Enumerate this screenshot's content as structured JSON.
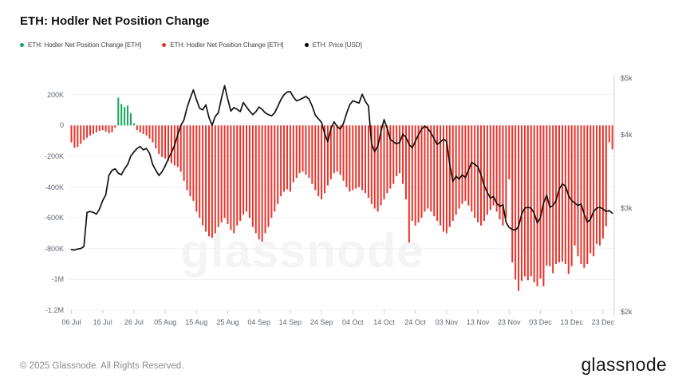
{
  "header": {
    "title": "ETH: Hodler Net Position Change"
  },
  "legend": [
    {
      "label": "ETH: Hodler Net Position Change [ETH]",
      "color": "#17a65b"
    },
    {
      "label": "ETH: Hodler Net Position Change [ETH]",
      "color": "#e9332a"
    },
    {
      "label": "ETH: Price [USD]",
      "color": "#000000"
    }
  ],
  "watermark": "glassnode",
  "footer": {
    "copyright": "© 2025 Glassnode. All Rights Reserved.",
    "logo": "glassnode"
  },
  "chart_data": {
    "type": "bar+line",
    "title": "ETH: Hodler Net Position Change",
    "x_start_date": "06 Jul",
    "x_frequency": "daily",
    "x_tick_labels": [
      "06 Jul",
      "16 Jul",
      "26 Jul",
      "05 Aug",
      "15 Aug",
      "25 Aug",
      "04 Sep",
      "14 Sep",
      "24 Sep",
      "04 Oct",
      "14 Oct",
      "24 Oct",
      "03 Nov",
      "13 Nov",
      "23 Nov",
      "03 Dec",
      "13 Dec",
      "23 Dec"
    ],
    "x_tick_day_indices": [
      0,
      10,
      20,
      30,
      40,
      50,
      60,
      70,
      80,
      90,
      100,
      110,
      120,
      130,
      140,
      150,
      160,
      170
    ],
    "left_axis": {
      "tick_labels": [
        "200K",
        "0",
        "-200K",
        "-400K",
        "-600K",
        "-800K",
        "-1M",
        "-1.2M"
      ],
      "tick_values_k": [
        200,
        0,
        -200,
        -400,
        -600,
        -800,
        -1000,
        -1200
      ],
      "range_k": [
        -1200,
        250
      ],
      "scale": "linear",
      "grid": true
    },
    "right_axis": {
      "tick_labels": [
        "$5k",
        "$4k",
        "$3k",
        "$2k"
      ],
      "tick_values_usd": [
        5000,
        4000,
        3000,
        2000
      ],
      "range_usd": [
        2000,
        5000
      ],
      "scale": "log",
      "grid": false
    },
    "series": [
      {
        "name": "ETH: Hodler Net Position Change [ETH]",
        "type": "bar",
        "unit": "thousand ETH",
        "positive_color": "#17a65b",
        "negative_color": "#e9332a",
        "values_k": [
          -110,
          -145,
          -140,
          -120,
          -95,
          -80,
          -65,
          -55,
          -45,
          -35,
          -30,
          -40,
          -50,
          -45,
          -15,
          180,
          140,
          120,
          130,
          80,
          15,
          -30,
          -45,
          -55,
          -65,
          -85,
          -110,
          -150,
          -185,
          -205,
          -215,
          -230,
          -245,
          -260,
          -270,
          -300,
          -360,
          -420,
          -460,
          -490,
          -560,
          -600,
          -650,
          -690,
          -720,
          -730,
          -700,
          -660,
          -630,
          -600,
          -640,
          -680,
          -700,
          -650,
          -620,
          -580,
          -560,
          -600,
          -660,
          -700,
          -740,
          -755,
          -700,
          -660,
          -600,
          -560,
          -510,
          -460,
          -430,
          -415,
          -430,
          -370,
          -340,
          -310,
          -300,
          -320,
          -340,
          -380,
          -420,
          -460,
          -480,
          -440,
          -390,
          -350,
          -310,
          -300,
          -320,
          -360,
          -400,
          -430,
          -420,
          -410,
          -400,
          -420,
          -440,
          -470,
          -510,
          -540,
          -560,
          -520,
          -480,
          -440,
          -410,
          -380,
          -330,
          -310,
          -380,
          -480,
          -760,
          -620,
          -650,
          -630,
          -600,
          -560,
          -540,
          -560,
          -590,
          -620,
          -650,
          -690,
          -700,
          -660,
          -620,
          -580,
          -540,
          -510,
          -490,
          -520,
          -560,
          -600,
          -630,
          -650,
          -620,
          -580,
          -550,
          -520,
          -560,
          -610,
          -650,
          -600,
          -350,
          -890,
          -1000,
          -1075,
          -1010,
          -980,
          -1005,
          -980,
          -1020,
          -1045,
          -995,
          -1045,
          -910,
          -915,
          -960,
          -900,
          -890,
          -885,
          -900,
          -965,
          -915,
          -780,
          -850,
          -900,
          -925,
          -900,
          -830,
          -850,
          -770,
          -780,
          -735,
          -655,
          -110,
          -155
        ]
      },
      {
        "name": "ETH: Price [USD]",
        "type": "line",
        "unit": "USD",
        "color": "#111111",
        "values_usd": [
          2550,
          2545,
          2555,
          2560,
          2580,
          2950,
          2960,
          2950,
          2930,
          2990,
          3090,
          3160,
          3410,
          3480,
          3500,
          3440,
          3420,
          3500,
          3560,
          3680,
          3740,
          3790,
          3820,
          3770,
          3790,
          3720,
          3560,
          3480,
          3410,
          3460,
          3540,
          3640,
          3730,
          3840,
          4000,
          4150,
          4240,
          4450,
          4620,
          4770,
          4590,
          4440,
          4410,
          4500,
          4280,
          4150,
          4300,
          4360,
          4620,
          4850,
          4600,
          4390,
          4450,
          4420,
          4380,
          4540,
          4460,
          4390,
          4330,
          4380,
          4460,
          4420,
          4360,
          4330,
          4310,
          4360,
          4470,
          4590,
          4680,
          4730,
          4740,
          4640,
          4570,
          4590,
          4620,
          4650,
          4600,
          4480,
          4320,
          4260,
          4200,
          4020,
          3890,
          4100,
          4210,
          4130,
          4090,
          4180,
          4350,
          4500,
          4570,
          4550,
          4530,
          4690,
          4560,
          4480,
          3860,
          3745,
          3830,
          4050,
          4245,
          4100,
          3930,
          3890,
          3860,
          3880,
          4010,
          3960,
          3850,
          3800,
          3900,
          4000,
          4090,
          4140,
          4100,
          4030,
          3940,
          3850,
          3890,
          3930,
          3900,
          3560,
          3330,
          3400,
          3360,
          3420,
          3380,
          3480,
          3590,
          3560,
          3530,
          3420,
          3280,
          3190,
          3120,
          3140,
          3060,
          3020,
          3040,
          2840,
          2780,
          2760,
          2750,
          2790,
          2930,
          3000,
          3010,
          3000,
          2940,
          2830,
          2890,
          3060,
          3155,
          3010,
          3030,
          3090,
          3230,
          3300,
          3270,
          3150,
          3090,
          3060,
          3030,
          3050,
          2930,
          2840,
          2870,
          2960,
          3000,
          3010,
          2990,
          2960,
          2970,
          2940
        ]
      }
    ]
  }
}
